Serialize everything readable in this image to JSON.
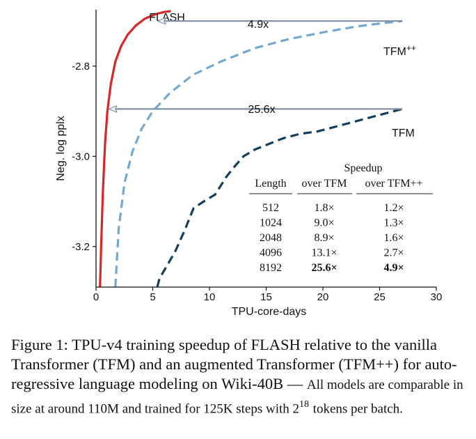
{
  "chart_data": {
    "type": "line",
    "xlabel": "TPU-core-days",
    "ylabel": "Neg. log pplx",
    "xlim": [
      0,
      30
    ],
    "ylim": [
      -3.29,
      -2.675
    ],
    "xticks": [
      0,
      5,
      10,
      15,
      20,
      25,
      30
    ],
    "xtick_labels": [
      "0",
      "5",
      "10",
      "15",
      "20",
      "25",
      "30"
    ],
    "yticks": [
      -2.8,
      -3.0,
      -3.2
    ],
    "ytick_labels": [
      "-2.8",
      "-3.0",
      "-3.2"
    ],
    "colors": {
      "flash": "#d62728",
      "tfmpp": "#74a9cf",
      "tfm": "#123f5a",
      "arrow": "#7f8fa6"
    },
    "series": [
      {
        "name": "FLASH",
        "label": "FLASH",
        "style": "solid",
        "x": [
          0.35,
          0.45,
          0.6,
          0.8,
          1.0,
          1.3,
          1.7,
          2.2,
          2.8,
          3.5,
          4.3,
          5.2,
          6.0,
          6.6
        ],
        "y": [
          -3.29,
          -3.2,
          -3.08,
          -2.97,
          -2.9,
          -2.84,
          -2.79,
          -2.756,
          -2.73,
          -2.71,
          -2.695,
          -2.685,
          -2.68,
          -2.678
        ]
      },
      {
        "name": "TFM++",
        "label": "TFM++",
        "style": "dashed",
        "x": [
          1.7,
          2.0,
          2.5,
          3.2,
          4.0,
          5.0,
          6.5,
          8.5,
          11.0,
          14.0,
          17.0,
          20.0,
          23.0,
          25.5,
          27.0
        ],
        "y": [
          -3.29,
          -3.16,
          -3.06,
          -2.99,
          -2.94,
          -2.9,
          -2.86,
          -2.82,
          -2.79,
          -2.76,
          -2.74,
          -2.725,
          -2.712,
          -2.704,
          -2.7
        ]
      },
      {
        "name": "TFM",
        "label": "TFM",
        "style": "dashed",
        "x": [
          5.4,
          5.6,
          6.2,
          7.0,
          7.8,
          8.6,
          9.5,
          10.5,
          11.5,
          12.3,
          13.0,
          14.0,
          15.0,
          16.5,
          18.0,
          19.5,
          21.0,
          22.5,
          24.0,
          25.5,
          27.0
        ],
        "y": [
          -3.29,
          -3.27,
          -3.245,
          -3.21,
          -3.165,
          -3.115,
          -3.1,
          -3.085,
          -3.045,
          -3.02,
          -3.0,
          -2.985,
          -2.975,
          -2.96,
          -2.95,
          -2.945,
          -2.935,
          -2.925,
          -2.915,
          -2.905,
          -2.895
        ]
      }
    ],
    "annotations": [
      {
        "text": "4.9x",
        "x_from": 27.0,
        "x_to": 5.5,
        "y": -2.7
      },
      {
        "text": "25.6x",
        "x_from": 27.0,
        "x_to": 1.2,
        "y": -2.895
      }
    ],
    "inset_table": {
      "group_header": "Speedup",
      "columns": [
        "Length",
        "over TFM",
        "over TFM++"
      ],
      "rows": [
        [
          "512",
          "1.8×",
          "1.2×"
        ],
        [
          "1024",
          "9.0×",
          "1.3×"
        ],
        [
          "2048",
          "8.9×",
          "1.6×"
        ],
        [
          "4096",
          "13.1×",
          "2.7×"
        ],
        [
          "8192",
          "25.6×",
          "4.9×"
        ]
      ],
      "bold_row_index": 4
    }
  },
  "caption": {
    "main": "Figure 1: TPU-v4 training speedup of FLASH relative to the vanilla Transformer (TFM) and an augmented Transformer (TFM++) for auto-regressive language modeling on Wiki-40B —",
    "small_a": "All models are comparable in size at around 110M and trained for 125K steps with 2",
    "superscript": "18",
    "small_b": "tokens per batch."
  }
}
